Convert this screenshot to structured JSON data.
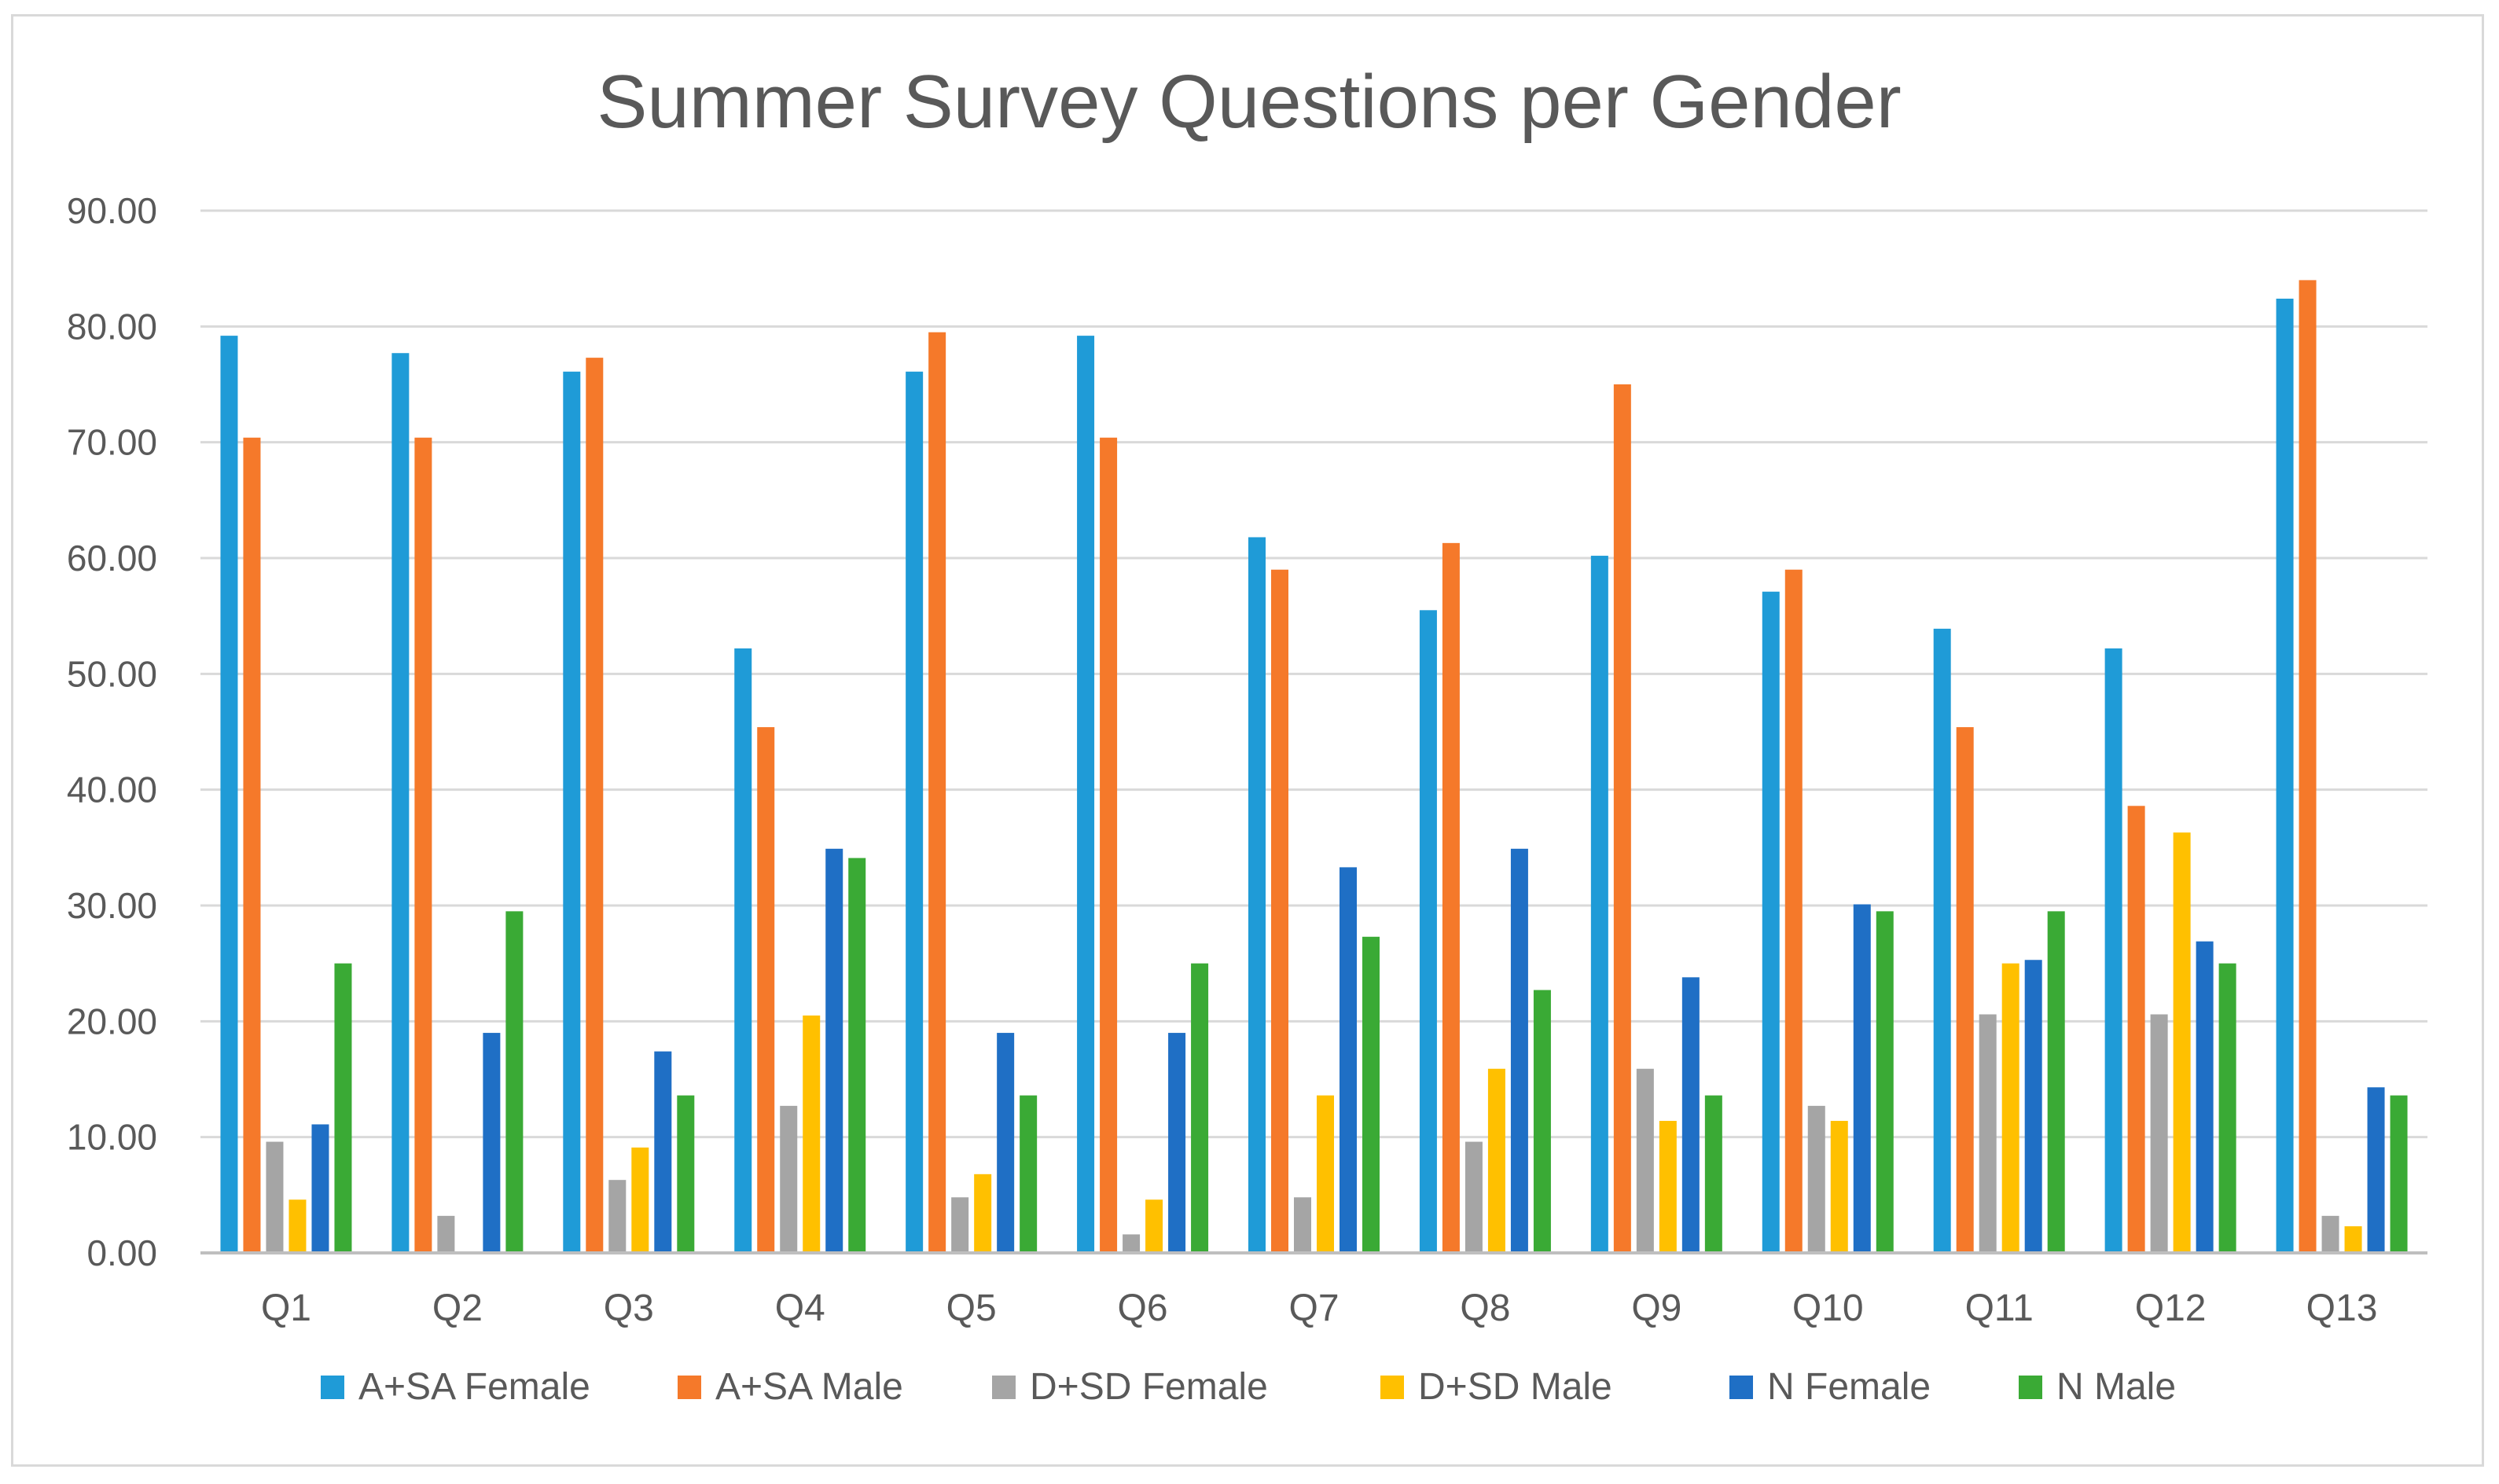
{
  "chart_data": {
    "type": "bar",
    "title": "Summer Survey Questions per Gender",
    "xlabel": "",
    "ylabel": "",
    "ylim": [
      0,
      90
    ],
    "y_ticks": [
      "0.00",
      "10.00",
      "20.00",
      "30.00",
      "40.00",
      "50.00",
      "60.00",
      "70.00",
      "80.00",
      "90.00"
    ],
    "y_tick_values": [
      0,
      10,
      20,
      30,
      40,
      50,
      60,
      70,
      80,
      90
    ],
    "grid": true,
    "legend_position": "bottom",
    "categories": [
      "Q1",
      "Q2",
      "Q3",
      "Q4",
      "Q5",
      "Q6",
      "Q7",
      "Q8",
      "Q9",
      "Q10",
      "Q11",
      "Q12",
      "Q13"
    ],
    "series": [
      {
        "name": "A+SA Female",
        "color": "#1F9BD7",
        "values": [
          79.2,
          77.7,
          76.1,
          52.2,
          76.1,
          79.2,
          61.8,
          55.5,
          60.2,
          57.1,
          53.9,
          52.2,
          82.4
        ]
      },
      {
        "name": "A+SA Male",
        "color": "#F5792A",
        "values": [
          70.4,
          70.4,
          77.3,
          45.4,
          79.5,
          70.4,
          59.0,
          61.3,
          75.0,
          59.0,
          45.4,
          38.6,
          84.0
        ]
      },
      {
        "name": "D+SD Female",
        "color": "#A5A5A5",
        "values": [
          9.6,
          3.2,
          6.3,
          12.7,
          4.8,
          1.6,
          4.8,
          9.6,
          15.9,
          12.7,
          20.6,
          20.6,
          3.2
        ]
      },
      {
        "name": "D+SD Male",
        "color": "#FFC000",
        "values": [
          4.6,
          0.0,
          9.1,
          20.5,
          6.8,
          4.6,
          13.6,
          15.9,
          11.4,
          11.4,
          25.0,
          36.3,
          2.3
        ]
      },
      {
        "name": "N Female",
        "color": "#1F6FC5",
        "values": [
          11.1,
          19.0,
          17.4,
          34.9,
          19.0,
          19.0,
          33.3,
          34.9,
          23.8,
          30.1,
          25.3,
          26.9,
          14.3
        ]
      },
      {
        "name": "N Male",
        "color": "#3AAA35",
        "values": [
          25.0,
          29.5,
          13.6,
          34.1,
          13.6,
          25.0,
          27.3,
          22.7,
          13.6,
          29.5,
          29.5,
          25.0,
          13.6
        ]
      }
    ]
  }
}
